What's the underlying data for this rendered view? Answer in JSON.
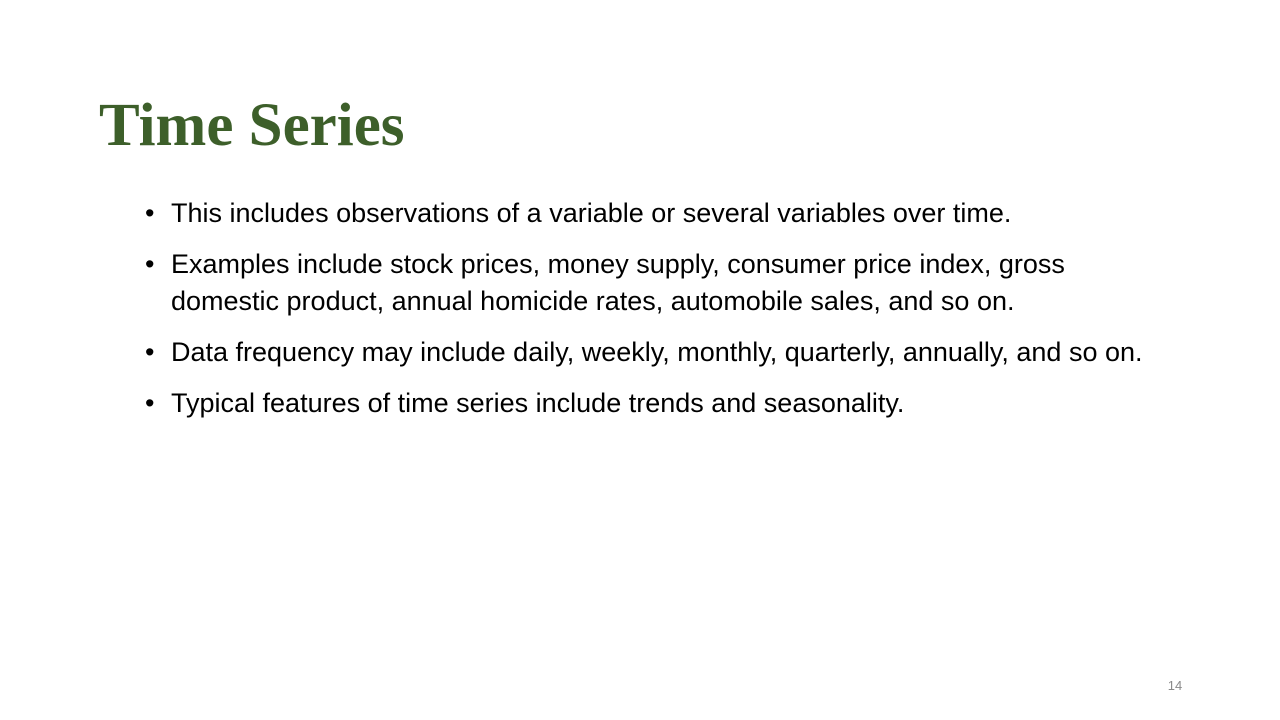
{
  "slide": {
    "title": "Time Series",
    "bullet_symbol": "•",
    "bullets": [
      "This includes observations of a variable or several variables over time.",
      "Examples include stock prices, money supply, consumer price index, gross domestic product, annual homicide rates, automobile sales, and so on.",
      "Data frequency may include daily, weekly, monthly, quarterly, annually, and so on.",
      "Typical features of time series include trends and seasonality."
    ],
    "page_number": "14"
  },
  "colors": {
    "title": "#3d5f2a",
    "body_text": "#000000",
    "page_number": "#8a8a8a",
    "background": "#ffffff"
  }
}
